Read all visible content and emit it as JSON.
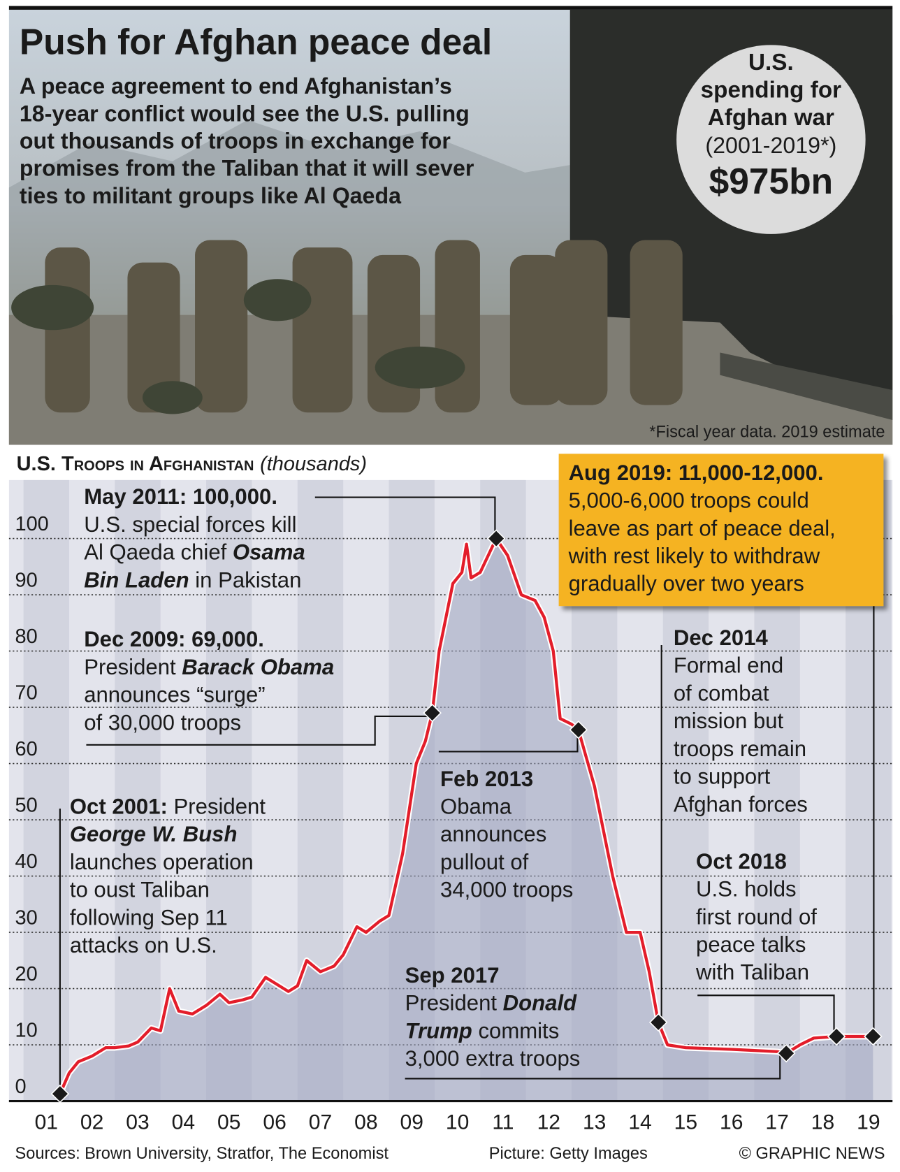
{
  "header": {
    "title": "Push for Afghan peace deal",
    "subtitle": [
      "A peace agreement to end Afghanistan’s",
      "18-year conflict would see the U.S. pulling",
      "out thousands of troops in exchange for",
      "promises from the Taliban that it will sever",
      "ties to militant groups like Al Qaeda"
    ],
    "spending": {
      "lines": [
        "U.S.",
        "spending for",
        "Afghan war"
      ],
      "period": "(2001-2019*)",
      "amount": "$975bn"
    },
    "footnote": "*Fiscal year data. 2019 estimate"
  },
  "chart_data": {
    "type": "line",
    "title": "U.S. Troops in Afghanistan",
    "title_unit": "(thousands)",
    "color": "#e31d2a",
    "x": [
      2001.8,
      2002.0,
      2002.2,
      2002.5,
      2002.8,
      2003.0,
      2003.3,
      2003.5,
      2003.8,
      2004.0,
      2004.2,
      2004.4,
      2004.7,
      2005.0,
      2005.3,
      2005.5,
      2005.8,
      2006.0,
      2006.3,
      2006.5,
      2006.8,
      2007.0,
      2007.2,
      2007.5,
      2007.8,
      2008.0,
      2008.3,
      2008.5,
      2008.8,
      2009.0,
      2009.3,
      2009.6,
      2009.8,
      2009.95,
      2010.1,
      2010.4,
      2010.6,
      2010.7,
      2010.8,
      2011.0,
      2011.35,
      2011.6,
      2011.9,
      2012.2,
      2012.4,
      2012.6,
      2012.75,
      2013.0,
      2013.15,
      2013.5,
      2013.9,
      2014.2,
      2014.5,
      2014.7,
      2014.9,
      2015.1,
      2015.5,
      2016.5,
      2017.5,
      2017.7,
      2018.0,
      2018.3,
      2018.8,
      2019.0,
      2019.6
    ],
    "values": [
      1.3,
      5,
      7,
      8,
      9.5,
      9.5,
      9.8,
      10.5,
      13,
      12.5,
      20,
      16,
      15.5,
      17,
      19,
      17.5,
      18,
      18.5,
      22,
      21,
      19.5,
      20.5,
      25,
      23,
      24,
      26,
      31,
      30,
      32,
      33,
      44,
      60,
      64,
      69,
      80,
      92,
      94,
      99,
      93,
      94,
      100,
      97,
      90,
      89,
      86,
      80,
      68,
      67,
      66,
      56,
      40,
      30,
      30,
      23,
      14,
      10,
      9.5,
      9.2,
      8.8,
      8.5,
      10,
      11.2,
      11.5,
      11.5,
      11.5
    ],
    "xlim": [
      2001,
      2020
    ],
    "xticks": [
      {
        "value": 2001.5,
        "label": "01"
      },
      {
        "value": 2002.5,
        "label": "02"
      },
      {
        "value": 2003.5,
        "label": "03"
      },
      {
        "value": 2004.5,
        "label": "04"
      },
      {
        "value": 2005.5,
        "label": "05"
      },
      {
        "value": 2006.5,
        "label": "06"
      },
      {
        "value": 2007.5,
        "label": "07"
      },
      {
        "value": 2008.5,
        "label": "08"
      },
      {
        "value": 2009.5,
        "label": "09"
      },
      {
        "value": 2010.5,
        "label": "10"
      },
      {
        "value": 2011.5,
        "label": "11"
      },
      {
        "value": 2012.5,
        "label": "12"
      },
      {
        "value": 2013.5,
        "label": "13"
      },
      {
        "value": 2014.5,
        "label": "14"
      },
      {
        "value": 2015.5,
        "label": "15"
      },
      {
        "value": 2016.5,
        "label": "16"
      },
      {
        "value": 2017.5,
        "label": "17"
      },
      {
        "value": 2018.5,
        "label": "18"
      },
      {
        "value": 2019.5,
        "label": "19"
      }
    ],
    "ylim": [
      0,
      110
    ],
    "yticks": [
      0,
      10,
      20,
      30,
      40,
      50,
      60,
      70,
      80,
      90,
      100
    ],
    "grid": true,
    "annotations": [
      {
        "lines": [
          [
            {
              "text": "Oct 2001:",
              "bold": true
            },
            {
              "text": " President"
            }
          ],
          [
            {
              "text": "George W. Bush",
              "bold": true,
              "italic": true
            }
          ],
          [
            {
              "text": "launches operation"
            }
          ],
          [
            {
              "text": "to oust Taliban"
            }
          ],
          [
            {
              "text": "following Sep 11"
            }
          ],
          [
            {
              "text": "attacks on U.S."
            }
          ]
        ]
      },
      {
        "lines": [
          [
            {
              "text": "Dec 2009: 69,000.",
              "bold": true
            }
          ],
          [
            {
              "text": "President "
            },
            {
              "text": "Barack Obama",
              "bold": true,
              "italic": true
            }
          ],
          [
            {
              "text": "announces “surge”"
            }
          ],
          [
            {
              "text": "of 30,000 troops"
            }
          ]
        ]
      },
      {
        "lines": [
          [
            {
              "text": "May 2011: 100,000.",
              "bold": true
            }
          ],
          [
            {
              "text": "U.S. special forces kill"
            }
          ],
          [
            {
              "text": "Al Qaeda chief "
            },
            {
              "text": "Osama",
              "bold": true,
              "italic": true
            }
          ],
          [
            {
              "text": "Bin Laden",
              "bold": true,
              "italic": true
            },
            {
              "text": " in Pakistan"
            }
          ]
        ]
      },
      {
        "lines": [
          [
            {
              "text": "Feb 2013",
              "bold": true
            }
          ],
          [
            {
              "text": "Obama"
            }
          ],
          [
            {
              "text": "announces"
            }
          ],
          [
            {
              "text": "pullout of"
            }
          ],
          [
            {
              "text": "34,000 troops"
            }
          ]
        ]
      },
      {
        "lines": [
          [
            {
              "text": "Dec 2014",
              "bold": true
            }
          ],
          [
            {
              "text": "Formal end"
            }
          ],
          [
            {
              "text": "of combat"
            }
          ],
          [
            {
              "text": "mission but"
            }
          ],
          [
            {
              "text": "troops remain"
            }
          ],
          [
            {
              "text": "to support"
            }
          ],
          [
            {
              "text": "Afghan forces"
            }
          ]
        ]
      },
      {
        "lines": [
          [
            {
              "text": "Sep 2017",
              "bold": true
            }
          ],
          [
            {
              "text": "President "
            },
            {
              "text": "Donald",
              "bold": true,
              "italic": true
            }
          ],
          [
            {
              "text": "Trump",
              "bold": true,
              "italic": true
            },
            {
              "text": " commits"
            }
          ],
          [
            {
              "text": "3,000 extra troops"
            }
          ]
        ]
      },
      {
        "lines": [
          [
            {
              "text": "Oct 2018",
              "bold": true
            }
          ],
          [
            {
              "text": "U.S. holds"
            }
          ],
          [
            {
              "text": "first round of"
            }
          ],
          [
            {
              "text": "peace talks"
            }
          ],
          [
            {
              "text": "with Taliban"
            }
          ]
        ]
      },
      {
        "lines": [
          [
            {
              "text": "Aug 2019: 11,000-12,000.",
              "bold": true
            }
          ],
          [
            {
              "text": "5,000-6,000 troops could"
            }
          ],
          [
            {
              "text": "leave as part of peace deal,"
            }
          ],
          [
            {
              "text": "with rest likely to withdraw"
            }
          ],
          [
            {
              "text": "gradually over two years"
            }
          ]
        ]
      }
    ]
  },
  "footer": {
    "sources": "Sources: Brown University, Stratfor, The Economist",
    "picture": "Picture: Getty Images",
    "copyright": "© GRAPHIC NEWS"
  }
}
